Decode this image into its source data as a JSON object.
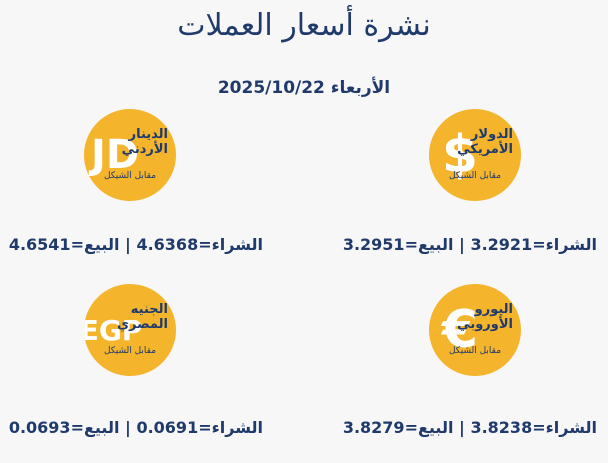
{
  "title": "نشرة أسعار العملات",
  "date": "الأربعاء 2025/10/22",
  "cards": [
    {
      "symbol": "$",
      "name_lines": [
        "الدولار",
        "الأمريكي"
      ],
      "against": "مقابل الشيكل",
      "buy_label": "الشراء=",
      "buy": 3.2921,
      "separator": "|",
      "sell_label": "البيع=",
      "sell": 3.2951
    },
    {
      "symbol": "JD",
      "name_lines": [
        "الدينار",
        "الأردني"
      ],
      "against": "مقابل الشيكل",
      "buy_label": "الشراء=",
      "buy": 4.6368,
      "separator": "|",
      "sell_label": "البيع=",
      "sell": 4.6541
    },
    {
      "symbol": "€",
      "name_lines": [
        "اليورو",
        "الأوروبي"
      ],
      "against": "مقابل الشيكل",
      "buy_label": "الشراء=",
      "buy": 3.8238,
      "separator": "|",
      "sell_label": "البيع=",
      "sell": 3.8279
    },
    {
      "symbol": "EGP",
      "name_lines": [
        "الجنيه",
        "المصري"
      ],
      "against": "مقابل الشيكل",
      "buy_label": "الشراء=",
      "buy": 0.0691,
      "separator": "|",
      "sell_label": "البيع=",
      "sell": 0.0693
    }
  ]
}
